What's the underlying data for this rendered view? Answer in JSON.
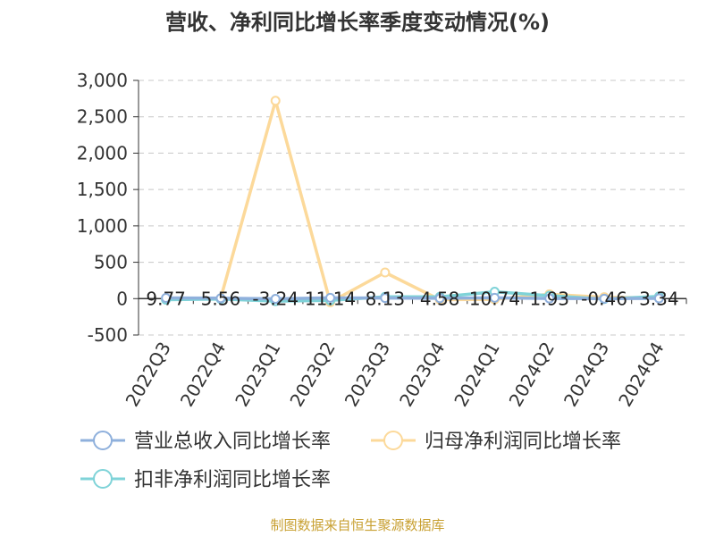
{
  "chart_data": {
    "type": "line",
    "title": "营收、净利同比增长率季度变动情况(%)",
    "categories": [
      "2022Q3",
      "2022Q4",
      "2023Q1",
      "2023Q2",
      "2023Q3",
      "2023Q4",
      "2024Q1",
      "2024Q2",
      "2024Q3",
      "2024Q4"
    ],
    "ylim": [
      -500,
      3000
    ],
    "yticks": [
      "-500",
      "0",
      "500",
      "1,000",
      "1,500",
      "2,000",
      "2,500",
      "3,000"
    ],
    "ytick_values": [
      -500,
      0,
      500,
      1000,
      1500,
      2000,
      2500,
      3000
    ],
    "grid": true,
    "legend_placement": "bottom",
    "series": [
      {
        "name": "营业总收入同比增长率",
        "color": "#8fb0dc",
        "values": [
          9.77,
          5.56,
          -3.24,
          11.14,
          8.13,
          4.58,
          10.74,
          1.93,
          -0.46,
          3.34
        ],
        "labels": [
          "9.77",
          "5.56",
          "-3.24",
          "11.14",
          "8.13",
          "4.58",
          "10.74",
          "1.93",
          "-0.46",
          "3.34"
        ]
      },
      {
        "name": "归母净利润同比增长率",
        "color": "#fcd99a",
        "values": [
          -5,
          3,
          2720,
          -50,
          360,
          -15,
          -10,
          60,
          20,
          10
        ]
      },
      {
        "name": "扣非净利润同比增长率",
        "color": "#7fd3d8",
        "values": [
          -15,
          -5,
          -35,
          -25,
          25,
          25,
          95,
          40,
          -5,
          30
        ]
      }
    ]
  },
  "source_text": "制图数据来自恒生聚源数据库"
}
